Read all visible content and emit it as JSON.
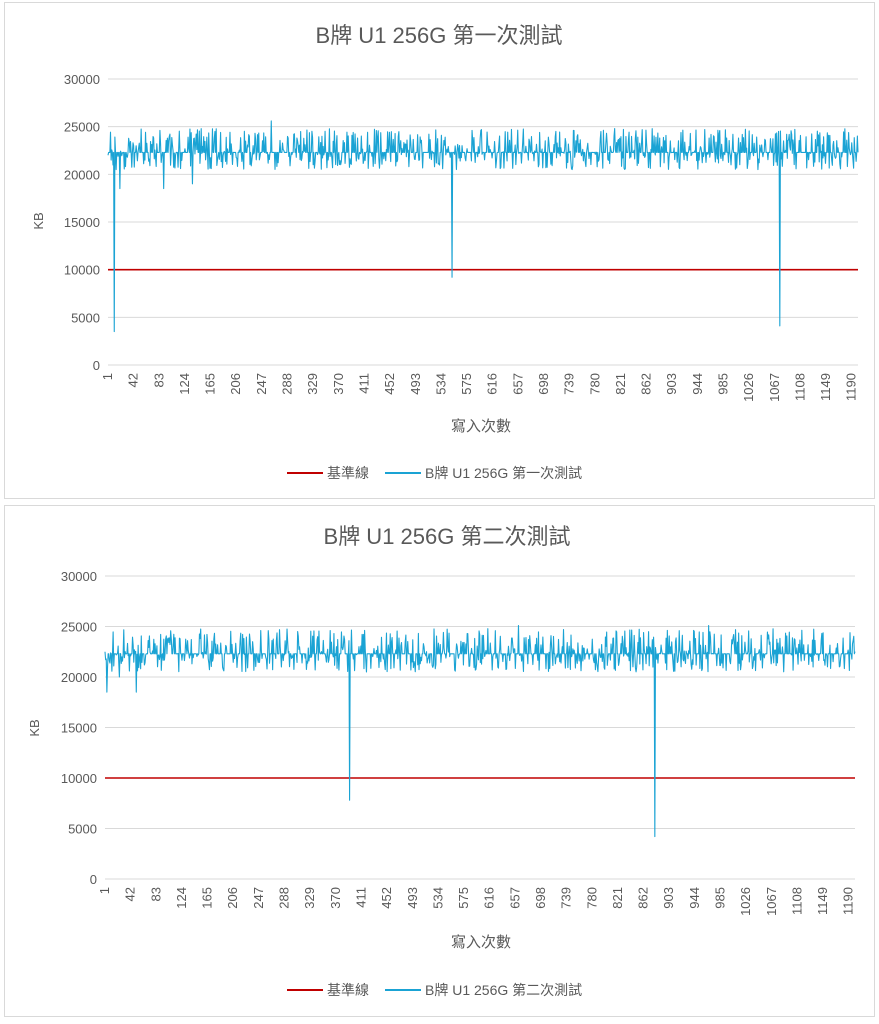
{
  "charts": [
    {
      "title": "B牌 U1 256G 第一次測試",
      "ylabel": "KB",
      "xlabel": "寫入次數",
      "legend": [
        {
          "label": "基準線",
          "color": "#c00000"
        },
        {
          "label": "B牌 U1 256G 第一次測試",
          "color": "#1aa3d4"
        }
      ]
    },
    {
      "title": "B牌 U1 256G 第二次測試",
      "ylabel": "KB",
      "xlabel": "寫入次數",
      "legend": [
        {
          "label": "基準線",
          "color": "#c00000"
        },
        {
          "label": "B牌 U1 256G 第二次測試",
          "color": "#1aa3d4"
        }
      ]
    }
  ],
  "chart_data": [
    {
      "type": "line",
      "title": "B牌 U1 256G 第一次測試",
      "xlabel": "寫入次數",
      "ylabel": "KB",
      "ylim": [
        0,
        30000
      ],
      "xlim": [
        1,
        1200
      ],
      "yticks": [
        0,
        5000,
        10000,
        15000,
        20000,
        25000,
        30000
      ],
      "xticks": [
        1,
        42,
        83,
        124,
        165,
        206,
        247,
        288,
        329,
        370,
        411,
        452,
        493,
        534,
        575,
        616,
        657,
        698,
        739,
        780,
        821,
        862,
        903,
        944,
        985,
        1026,
        1067,
        1108,
        1149,
        1190
      ],
      "grid": true,
      "legend_position": "bottom",
      "series": [
        {
          "name": "基準線",
          "color": "#c00000",
          "constant": 10000
        },
        {
          "name": "B牌 U1 256G 第一次測試",
          "color": "#1aa3d4",
          "typical": 22300,
          "noise": {
            "low": 20500,
            "high": 24800,
            "seed": 11
          },
          "points": [
            [
              1,
              22000
            ],
            [
              6,
              21500
            ],
            [
              11,
              3500
            ],
            [
              14,
              20500
            ],
            [
              20,
              18500
            ],
            [
              90,
              18500
            ],
            [
              136,
              19000
            ],
            [
              262,
              25600
            ],
            [
              551,
              9200
            ],
            [
              1075,
              4100
            ]
          ]
        }
      ]
    },
    {
      "type": "line",
      "title": "B牌 U1 256G 第二次測試",
      "xlabel": "寫入次數",
      "ylabel": "KB",
      "ylim": [
        0,
        30000
      ],
      "xlim": [
        1,
        1200
      ],
      "yticks": [
        0,
        5000,
        10000,
        15000,
        20000,
        25000,
        30000
      ],
      "xticks": [
        1,
        42,
        83,
        124,
        165,
        206,
        247,
        288,
        329,
        370,
        411,
        452,
        493,
        534,
        575,
        616,
        657,
        698,
        739,
        780,
        821,
        862,
        903,
        944,
        985,
        1026,
        1067,
        1108,
        1149,
        1190
      ],
      "grid": true,
      "legend_position": "bottom",
      "series": [
        {
          "name": "基準線",
          "color": "#c00000",
          "constant": 10000
        },
        {
          "name": "B牌 U1 256G 第二次測試",
          "color": "#1aa3d4",
          "typical": 22300,
          "noise": {
            "low": 20500,
            "high": 24800,
            "seed": 29
          },
          "points": [
            [
              1,
              22500
            ],
            [
              4,
              18500
            ],
            [
              24,
              20000
            ],
            [
              51,
              18500
            ],
            [
              392,
              7800
            ],
            [
              662,
              25100
            ],
            [
              880,
              4200
            ],
            [
              966,
              25100
            ]
          ]
        }
      ]
    }
  ]
}
